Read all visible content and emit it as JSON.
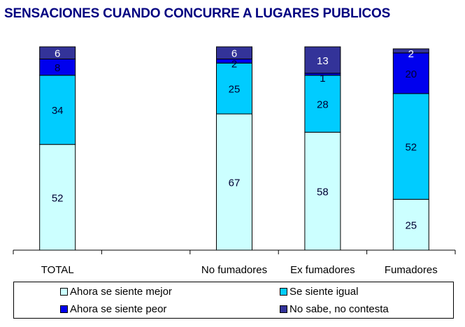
{
  "chart_data": {
    "type": "bar",
    "stacked": true,
    "title": "SENSACIONES CUANDO CONCURRE A LUGARES PUBLICOS",
    "xlabel": "",
    "ylabel": "",
    "ylim": [
      0,
      100
    ],
    "grid": false,
    "legend_position": "bottom",
    "categories": [
      "TOTAL",
      "",
      "No fumadores",
      "Ex fumadores",
      "Fumadores"
    ],
    "series": [
      {
        "name": "Ahora se siente mejor",
        "color": "#CCFFFF",
        "label_color": "#000033",
        "values": [
          52,
          null,
          67,
          58,
          25
        ]
      },
      {
        "name": "Se siente igual",
        "color": "#00CCFF",
        "label_color": "#000033",
        "values": [
          34,
          null,
          25,
          28,
          52
        ]
      },
      {
        "name": "Ahora se siente peor",
        "color": "#0000EE",
        "label_color": "#000033",
        "values": [
          8,
          null,
          2,
          1,
          20
        ]
      },
      {
        "name": "No sabe, no contesta",
        "color": "#333399",
        "label_color": "#FFFFFF",
        "values": [
          6,
          null,
          6,
          13,
          2
        ]
      }
    ]
  }
}
